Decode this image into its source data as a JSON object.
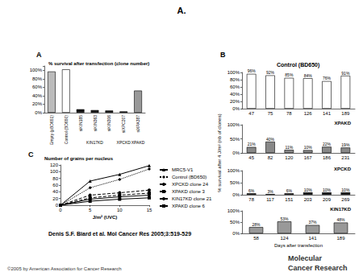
{
  "figure": {
    "title": "A.",
    "panel_labels": [
      "A",
      "B",
      "C"
    ],
    "citation": "Denis S.F. Biard et al. Mol Cancer Res 2005;3:519-529",
    "copyright": "©2005 by American Association for Cancer Research",
    "logo": [
      "Molecular",
      "Cancer Research"
    ]
  },
  "chart_data": [
    {
      "type": "bar",
      "title": "% survival after transfection (clone number)",
      "categories": [
        "Empty (pBD651)",
        "Control (BD650)",
        "siKIN185",
        "siKIN363",
        "siKIN306",
        "siXPC207",
        "siXPA387"
      ],
      "group_labels": [
        null,
        null,
        null,
        "KIN17KD",
        null,
        "XPCKD",
        "XPAKD"
      ],
      "values": [
        97,
        102,
        8,
        6,
        5,
        3,
        52
      ],
      "colors": [
        "#bbbbbb",
        "#ffffff",
        "#111111",
        "#111111",
        "#111111",
        "#111111",
        "#999999"
      ],
      "ylim": [
        0,
        110
      ],
      "yticks": [
        {
          "value": 0,
          "label": "0%"
        },
        {
          "value": 20,
          "label": "20%"
        },
        {
          "value": 40,
          "label": "40%"
        },
        {
          "value": 60,
          "label": "60%"
        },
        {
          "value": 80,
          "label": "80%"
        },
        {
          "value": 100,
          "label": "100%"
        }
      ]
    },
    {
      "type": "bar",
      "title": "Control (BD650)",
      "ylabel": "% survival after 4 J/m² (nb of clones)",
      "categories": [
        "47",
        "75",
        "78",
        "126",
        "141",
        "189"
      ],
      "values": [
        96,
        92,
        85,
        84,
        76,
        91
      ],
      "value_labels": [
        "96%",
        "92%",
        "85%",
        "84%",
        "76%",
        "91%"
      ],
      "color": "#ffffff",
      "data_labels": true,
      "ylim": [
        0,
        100
      ],
      "yticks": [
        {
          "value": 0,
          "label": "0%"
        },
        {
          "value": 20,
          "label": "20%"
        },
        {
          "value": 40,
          "label": "40%"
        },
        {
          "value": 60,
          "label": "60%"
        },
        {
          "value": 80,
          "label": "80%"
        },
        {
          "value": 100,
          "label": "100%"
        }
      ]
    },
    {
      "type": "bar",
      "title": "XPAKD",
      "categories": [
        "45",
        "82",
        "120",
        "167",
        "186",
        "231"
      ],
      "values": [
        21,
        40,
        11,
        10,
        22,
        19
      ],
      "value_labels": [
        "21%",
        "40%",
        "11%",
        "10%",
        "22%",
        "19%"
      ],
      "color": "#888888",
      "data_labels": true,
      "ylim": [
        0,
        100
      ],
      "yticks": [
        {
          "value": 0,
          "label": "0%"
        },
        {
          "value": 50,
          "label": "50%"
        },
        {
          "value": 100,
          "label": "100%"
        }
      ]
    },
    {
      "type": "bar",
      "title": "XPCKD",
      "categories": [
        "78",
        "117",
        "151",
        "203",
        "209",
        "269"
      ],
      "values": [
        6,
        3,
        6,
        10,
        10,
        10
      ],
      "value_labels": [
        "6%",
        "3%",
        "6%",
        "10%",
        "10%",
        "10%"
      ],
      "color": "#111111",
      "data_labels": true,
      "ylim": [
        0,
        100
      ],
      "yticks": [
        {
          "value": 0,
          "label": "0%"
        },
        {
          "value": 50,
          "label": "50%"
        },
        {
          "value": 100,
          "label": "100%"
        }
      ]
    },
    {
      "type": "bar",
      "title": "KIN17KD",
      "xlabel": "Days after transfection",
      "categories": [
        "58",
        "124",
        "141",
        "189"
      ],
      "values": [
        28,
        53,
        37,
        48
      ],
      "value_labels": [
        "28%",
        "53%",
        "37%",
        "48%"
      ],
      "color": "#999999",
      "data_labels": true,
      "ylim": [
        0,
        100
      ],
      "yticks": [
        {
          "value": 0,
          "label": "0%"
        },
        {
          "value": 50,
          "label": "50%"
        },
        {
          "value": 100,
          "label": "100%"
        }
      ]
    },
    {
      "type": "line",
      "title": "Number of grains per nucleus",
      "xlabel": "J/m² (UVC)",
      "x": [
        0,
        5,
        10,
        15
      ],
      "xlim": [
        0,
        15
      ],
      "xticks": [
        0,
        5,
        10,
        15
      ],
      "ylim": [
        0,
        120
      ],
      "yticks": [
        0,
        20,
        40,
        60,
        80,
        100,
        120
      ],
      "legend": "right",
      "series": [
        {
          "name": "MRC5-V1",
          "color": "#000000",
          "marker": "triangle",
          "line_style": "solid",
          "values": [
            0,
            72,
            92,
            118
          ]
        },
        {
          "name": "Control (BD650)",
          "color": "#000000",
          "marker": "diamond",
          "line_style": "dotted",
          "values": [
            0,
            52,
            77,
            108
          ]
        },
        {
          "name": "XPCKD clone 24",
          "color": "#000000",
          "marker": "circle",
          "line_style": "dashed",
          "values": [
            0,
            30,
            37,
            45
          ]
        },
        {
          "name": "XPAKD clone 3",
          "color": "#000000",
          "marker": "rect",
          "line_style": "dashed",
          "values": [
            0,
            22,
            30,
            36
          ]
        },
        {
          "name": "KIN17KD clone 21",
          "color": "#000000",
          "marker": "circle",
          "line_style": "solid",
          "values": [
            0,
            18,
            25,
            30
          ]
        },
        {
          "name": "XPAKD clone 6",
          "color": "#000000",
          "marker": "rect",
          "line_style": "solid",
          "values": [
            0,
            12,
            18,
            22
          ]
        }
      ]
    }
  ]
}
